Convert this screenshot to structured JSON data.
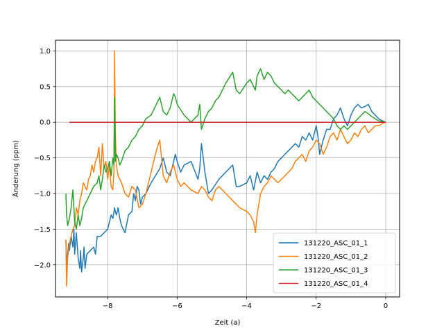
{
  "chart_data": {
    "type": "line",
    "title": "",
    "xlabel": "Zeit (a)",
    "ylabel": "Änderung (ppm)",
    "xlim": [
      -9.5,
      0.4
    ],
    "ylim": [
      -2.45,
      1.15
    ],
    "xticks": [
      -8,
      -6,
      -4,
      -2,
      0
    ],
    "yticks": [
      -2.0,
      -1.5,
      -1.0,
      -0.5,
      0.0,
      0.5,
      1.0
    ],
    "xtick_labels": [
      "−8",
      "−6",
      "−4",
      "−2",
      "0"
    ],
    "ytick_labels": [
      "−2.0",
      "−1.5",
      "−1.0",
      "−0.5",
      "0.0",
      "0.5",
      "1.0"
    ],
    "grid": true,
    "legend_position": "lower-right",
    "series": [
      {
        "name": "131220_ASC_01_1",
        "color": "#1f77b4",
        "x": [
          -9.2,
          -9.18,
          -9.15,
          -9.12,
          -9.1,
          -9.05,
          -9.0,
          -8.97,
          -8.95,
          -8.9,
          -8.85,
          -8.8,
          -8.78,
          -8.75,
          -8.7,
          -8.68,
          -8.65,
          -8.6,
          -8.5,
          -8.4,
          -8.35,
          -8.3,
          -8.2,
          -8.1,
          -8.0,
          -7.9,
          -7.85,
          -7.8,
          -7.78,
          -7.75,
          -7.72,
          -7.7,
          -7.65,
          -7.6,
          -7.5,
          -7.4,
          -7.3,
          -7.25,
          -7.2,
          -7.15,
          -7.1,
          -7.05,
          -7.0,
          -6.9,
          -6.75,
          -6.5,
          -6.4,
          -6.3,
          -6.2,
          -6.1,
          -6.05,
          -6.0,
          -5.9,
          -5.8,
          -5.6,
          -5.4,
          -5.35,
          -5.3,
          -5.2,
          -5.1,
          -5.0,
          -4.8,
          -4.6,
          -4.4,
          -4.3,
          -4.2,
          -4.0,
          -3.9,
          -3.8,
          -3.7,
          -3.6,
          -3.5,
          -3.4,
          -3.3,
          -3.2,
          -3.1,
          -3.0,
          -2.9,
          -2.8,
          -2.7,
          -2.6,
          -2.5,
          -2.4,
          -2.3,
          -2.2,
          -2.1,
          -2.0,
          -1.95,
          -1.9,
          -1.8,
          -1.7,
          -1.6,
          -1.5,
          -1.4,
          -1.3,
          -1.2,
          -1.1,
          -1.0,
          -0.9,
          -0.8,
          -0.7,
          -0.6,
          -0.5,
          -0.4,
          -0.3,
          -0.2,
          -0.1,
          0.0
        ],
        "y": [
          -1.65,
          -2.0,
          -1.85,
          -1.7,
          -1.8,
          -1.6,
          -1.75,
          -1.5,
          -1.85,
          -1.55,
          -1.9,
          -2.05,
          -1.8,
          -2.1,
          -1.9,
          -1.75,
          -2.05,
          -1.85,
          -1.8,
          -1.75,
          -1.85,
          -1.6,
          -1.6,
          -1.55,
          -1.5,
          -1.3,
          -1.35,
          -1.2,
          -1.25,
          -1.3,
          -1.25,
          -1.2,
          -1.35,
          -1.45,
          -1.55,
          -1.3,
          -1.25,
          -1.0,
          -1.1,
          -0.9,
          -0.95,
          -1.15,
          -1.05,
          -1.0,
          -0.85,
          -0.65,
          -0.5,
          -0.7,
          -0.75,
          -0.55,
          -0.45,
          -0.55,
          -0.7,
          -0.6,
          -0.55,
          -0.8,
          -0.65,
          -0.3,
          -0.7,
          -1.0,
          -0.95,
          -0.8,
          -0.7,
          -0.6,
          -0.9,
          -0.9,
          -0.85,
          -0.75,
          -0.95,
          -0.7,
          -0.85,
          -0.75,
          -0.8,
          -0.7,
          -0.65,
          -0.55,
          -0.5,
          -0.45,
          -0.4,
          -0.35,
          -0.3,
          -0.35,
          -0.2,
          -0.25,
          -0.15,
          -0.25,
          -0.05,
          -0.2,
          -0.45,
          -0.25,
          -0.1,
          -0.1,
          0.05,
          0.1,
          0.2,
          0.05,
          -0.05,
          0.1,
          0.2,
          0.25,
          0.2,
          0.22,
          0.25,
          0.15,
          0.1,
          0.05,
          0.02,
          0.0
        ],
        "values_note": ""
      },
      {
        "name": "131220_ASC_01_2",
        "color": "#ff7f0e",
        "x": [
          -9.2,
          -9.18,
          -9.15,
          -9.1,
          -9.05,
          -9.0,
          -8.95,
          -8.9,
          -8.85,
          -8.8,
          -8.75,
          -8.7,
          -8.65,
          -8.6,
          -8.55,
          -8.5,
          -8.45,
          -8.4,
          -8.35,
          -8.3,
          -8.25,
          -8.2,
          -8.15,
          -8.1,
          -8.05,
          -8.0,
          -7.95,
          -7.9,
          -7.85,
          -7.82,
          -7.8,
          -7.78,
          -7.75,
          -7.7,
          -7.6,
          -7.5,
          -7.4,
          -7.3,
          -7.2,
          -7.1,
          -7.0,
          -6.9,
          -6.8,
          -6.7,
          -6.6,
          -6.5,
          -6.4,
          -6.3,
          -6.2,
          -6.1,
          -6.0,
          -5.9,
          -5.8,
          -5.6,
          -5.4,
          -5.3,
          -5.2,
          -5.1,
          -5.0,
          -4.9,
          -4.8,
          -4.6,
          -4.4,
          -4.2,
          -4.0,
          -3.9,
          -3.8,
          -3.75,
          -3.7,
          -3.6,
          -3.5,
          -3.4,
          -3.3,
          -3.2,
          -3.1,
          -3.0,
          -2.9,
          -2.8,
          -2.7,
          -2.6,
          -2.5,
          -2.4,
          -2.3,
          -2.2,
          -2.1,
          -2.0,
          -1.9,
          -1.8,
          -1.7,
          -1.6,
          -1.5,
          -1.4,
          -1.3,
          -1.2,
          -1.1,
          -1.0,
          -0.9,
          -0.8,
          -0.7,
          -0.6,
          -0.5,
          -0.4,
          -0.3,
          -0.2,
          -0.1,
          0.0
        ],
        "y": [
          -1.65,
          -2.3,
          -1.9,
          -1.7,
          -1.6,
          -1.5,
          -1.45,
          -1.2,
          -1.3,
          -1.1,
          -1.0,
          -0.85,
          -0.9,
          -0.95,
          -0.8,
          -0.75,
          -0.6,
          -0.7,
          -0.55,
          -0.5,
          -0.35,
          -0.75,
          -0.3,
          -0.65,
          -0.55,
          -0.8,
          -0.6,
          -0.9,
          -0.95,
          -0.7,
          1.0,
          -0.1,
          -0.6,
          -0.75,
          -0.85,
          -1.0,
          -1.05,
          -0.9,
          -0.95,
          -1.2,
          -1.15,
          -1.0,
          -0.8,
          -0.6,
          -0.4,
          -0.25,
          -0.75,
          -0.85,
          -0.7,
          -0.6,
          -0.8,
          -0.9,
          -0.85,
          -0.95,
          -1.0,
          -0.9,
          -0.95,
          -1.05,
          -1.1,
          -0.95,
          -0.9,
          -1.0,
          -1.1,
          -1.2,
          -1.25,
          -1.3,
          -1.4,
          -1.55,
          -1.3,
          -1.0,
          -0.9,
          -0.85,
          -0.75,
          -0.8,
          -0.85,
          -0.8,
          -0.75,
          -0.7,
          -0.65,
          -0.55,
          -0.5,
          -0.45,
          -0.55,
          -0.4,
          -0.35,
          -0.25,
          -0.3,
          -0.45,
          -0.35,
          -0.2,
          -0.15,
          -0.25,
          -0.1,
          -0.2,
          -0.3,
          -0.25,
          -0.15,
          -0.2,
          -0.1,
          -0.05,
          -0.15,
          -0.1,
          -0.05,
          -0.05,
          -0.02,
          0.0
        ],
        "values_note": ""
      },
      {
        "name": "131220_ASC_01_3",
        "color": "#2ca02c",
        "x": [
          -9.2,
          -9.18,
          -9.15,
          -9.1,
          -9.05,
          -9.0,
          -8.95,
          -8.9,
          -8.85,
          -8.8,
          -8.75,
          -8.7,
          -8.6,
          -8.5,
          -8.4,
          -8.3,
          -8.25,
          -8.2,
          -8.15,
          -8.1,
          -8.05,
          -8.0,
          -7.95,
          -7.9,
          -7.85,
          -7.82,
          -7.8,
          -7.78,
          -7.75,
          -7.7,
          -7.65,
          -7.6,
          -7.5,
          -7.4,
          -7.3,
          -7.2,
          -7.1,
          -7.0,
          -6.9,
          -6.75,
          -6.5,
          -6.4,
          -6.3,
          -6.2,
          -6.1,
          -6.05,
          -6.0,
          -5.8,
          -5.6,
          -5.4,
          -5.35,
          -5.3,
          -5.2,
          -5.1,
          -5.0,
          -4.9,
          -4.8,
          -4.6,
          -4.4,
          -4.3,
          -4.2,
          -4.0,
          -3.9,
          -3.8,
          -3.75,
          -3.7,
          -3.6,
          -3.5,
          -3.4,
          -3.3,
          -3.2,
          -3.1,
          -3.0,
          -2.9,
          -2.8,
          -2.7,
          -2.6,
          -2.5,
          -2.4,
          -2.3,
          -2.2,
          -2.1,
          -2.0,
          -1.9,
          -1.8,
          -1.7,
          -1.6,
          -1.5,
          -1.4,
          -1.3,
          -1.2,
          -1.1,
          -1.0,
          -0.9,
          -0.8,
          -0.7,
          -0.6,
          -0.5,
          -0.4,
          -0.3,
          -0.2,
          -0.1,
          0.0
        ],
        "y": [
          -1.0,
          -1.3,
          -1.45,
          -1.35,
          -1.2,
          -0.95,
          -1.4,
          -1.5,
          -1.3,
          -1.45,
          -1.35,
          -1.2,
          -1.1,
          -1.0,
          -0.9,
          -0.85,
          -0.75,
          -0.95,
          -0.8,
          -0.6,
          -0.7,
          -0.65,
          -0.55,
          -0.75,
          -0.5,
          -0.6,
          0.35,
          -0.55,
          -0.45,
          -0.5,
          -0.6,
          -0.55,
          -0.4,
          -0.35,
          -0.25,
          -0.2,
          -0.1,
          -0.05,
          0.05,
          0.1,
          0.35,
          0.15,
          0.1,
          0.2,
          0.4,
          0.35,
          0.25,
          0.1,
          0.0,
          0.1,
          0.25,
          -0.1,
          0.05,
          0.15,
          0.2,
          0.3,
          0.35,
          0.55,
          0.7,
          0.45,
          0.4,
          0.55,
          0.6,
          0.5,
          0.45,
          0.65,
          0.75,
          0.6,
          0.7,
          0.65,
          0.55,
          0.5,
          0.45,
          0.4,
          0.45,
          0.4,
          0.35,
          0.3,
          0.35,
          0.4,
          0.45,
          0.35,
          0.3,
          0.25,
          0.2,
          0.15,
          0.1,
          0.05,
          -0.05,
          -0.1,
          -0.05,
          -0.1,
          -0.05,
          0.0,
          0.05,
          0.1,
          0.15,
          0.12,
          0.08,
          0.05,
          0.02,
          0.01,
          0.0
        ],
        "values_note": ""
      },
      {
        "name": "131220_ASC_01_4",
        "color": "#d62728",
        "x": [
          -9.1,
          0.0
        ],
        "y": [
          0.0,
          0.0
        ],
        "values_note": ""
      }
    ]
  }
}
